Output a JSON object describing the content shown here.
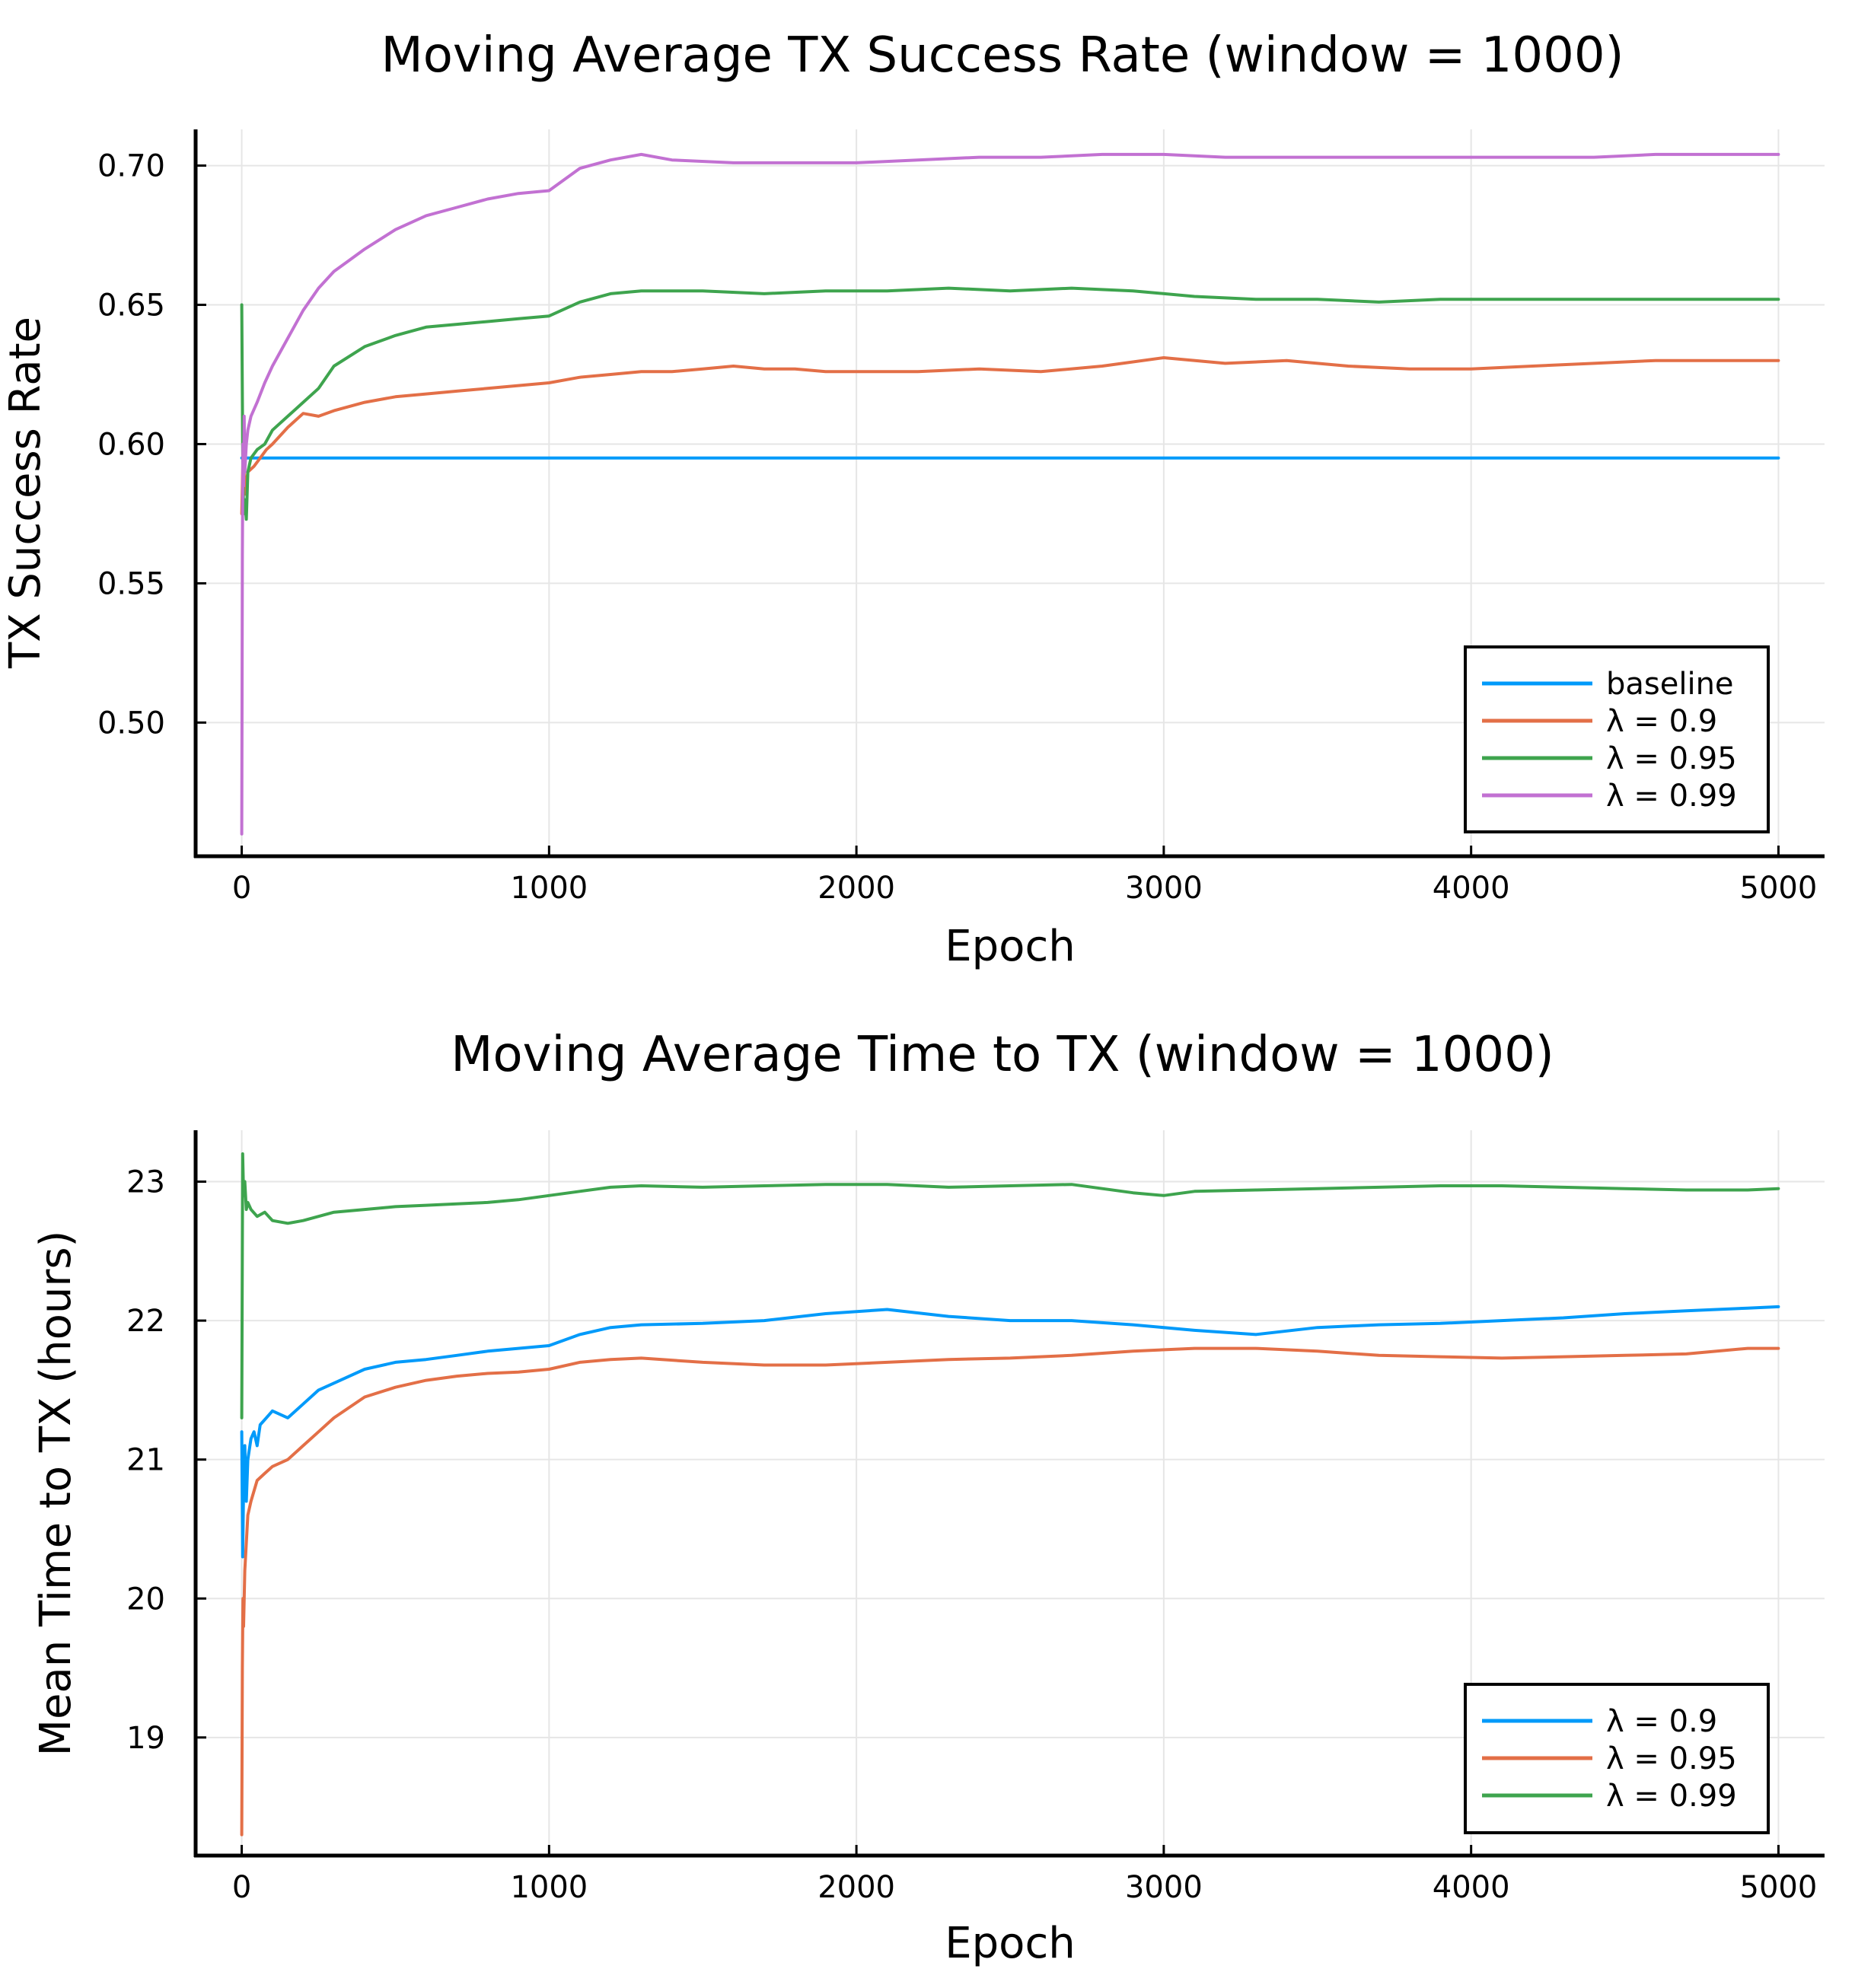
{
  "chart_data": [
    {
      "type": "line",
      "title": "Moving Average TX Success Rate (window = 1000)",
      "xlabel": "Epoch",
      "ylabel": "TX Success Rate",
      "xlim": [
        -150,
        5150
      ],
      "ylim": [
        0.452,
        0.713
      ],
      "xticks": [
        0,
        1000,
        2000,
        3000,
        4000,
        5000
      ],
      "xtick_labels": [
        "0",
        "1000",
        "2000",
        "3000",
        "4000",
        "5000"
      ],
      "yticks": [
        0.5,
        0.55,
        0.6,
        0.65,
        0.7
      ],
      "ytick_labels": [
        "0.50",
        "0.55",
        "0.60",
        "0.65",
        "0.70"
      ],
      "grid": true,
      "legend_position": "bottom-right",
      "series": [
        {
          "name": "baseline",
          "color": "#009AFA",
          "x": [
            0,
            5000
          ],
          "y": [
            0.595,
            0.595
          ]
        },
        {
          "name": "λ = 0.9",
          "color": "#E36F47",
          "x": [
            0,
            5,
            10,
            20,
            40,
            60,
            80,
            100,
            150,
            200,
            250,
            300,
            400,
            500,
            600,
            700,
            800,
            900,
            1000,
            1100,
            1200,
            1300,
            1400,
            1500,
            1600,
            1700,
            1800,
            1900,
            2000,
            2200,
            2400,
            2600,
            2800,
            3000,
            3200,
            3400,
            3600,
            3800,
            4000,
            4200,
            4400,
            4600,
            4800,
            5000
          ],
          "y": [
            0.575,
            0.6,
            0.582,
            0.59,
            0.592,
            0.595,
            0.598,
            0.6,
            0.606,
            0.611,
            0.61,
            0.612,
            0.615,
            0.617,
            0.618,
            0.619,
            0.62,
            0.621,
            0.622,
            0.624,
            0.625,
            0.626,
            0.626,
            0.627,
            0.628,
            0.627,
            0.627,
            0.626,
            0.626,
            0.626,
            0.627,
            0.626,
            0.628,
            0.631,
            0.629,
            0.63,
            0.628,
            0.627,
            0.627,
            0.628,
            0.629,
            0.63,
            0.63,
            0.63
          ]
        },
        {
          "name": "λ = 0.95",
          "color": "#3EA44E",
          "x": [
            0,
            3,
            6,
            10,
            15,
            20,
            30,
            50,
            75,
            100,
            150,
            200,
            250,
            300,
            400,
            500,
            600,
            700,
            800,
            900,
            1000,
            1100,
            1200,
            1300,
            1500,
            1700,
            1900,
            2100,
            2300,
            2500,
            2700,
            2900,
            3100,
            3300,
            3500,
            3700,
            3900,
            4100,
            4300,
            4500,
            4700,
            4900,
            5000
          ],
          "y": [
            0.65,
            0.6,
            0.575,
            0.58,
            0.573,
            0.59,
            0.595,
            0.598,
            0.6,
            0.605,
            0.61,
            0.615,
            0.62,
            0.628,
            0.635,
            0.639,
            0.642,
            0.643,
            0.644,
            0.645,
            0.646,
            0.651,
            0.654,
            0.655,
            0.655,
            0.654,
            0.655,
            0.655,
            0.656,
            0.655,
            0.656,
            0.655,
            0.653,
            0.652,
            0.652,
            0.651,
            0.652,
            0.652,
            0.652,
            0.652,
            0.652,
            0.652,
            0.652
          ]
        },
        {
          "name": "λ = 0.99",
          "color": "#C271D2",
          "x": [
            0,
            2,
            4,
            6,
            8,
            10,
            15,
            20,
            30,
            50,
            75,
            100,
            150,
            200,
            250,
            300,
            350,
            400,
            500,
            600,
            700,
            800,
            900,
            1000,
            1050,
            1100,
            1200,
            1300,
            1400,
            1600,
            1800,
            2000,
            2200,
            2400,
            2600,
            2800,
            3000,
            3200,
            3400,
            3600,
            3800,
            4000,
            4200,
            4400,
            4600,
            4800,
            5000
          ],
          "y": [
            0.46,
            0.56,
            0.6,
            0.585,
            0.61,
            0.59,
            0.6,
            0.605,
            0.61,
            0.615,
            0.622,
            0.628,
            0.638,
            0.648,
            0.656,
            0.662,
            0.666,
            0.67,
            0.677,
            0.682,
            0.685,
            0.688,
            0.69,
            0.691,
            0.695,
            0.699,
            0.702,
            0.704,
            0.702,
            0.701,
            0.701,
            0.701,
            0.702,
            0.703,
            0.703,
            0.704,
            0.704,
            0.703,
            0.703,
            0.703,
            0.703,
            0.703,
            0.703,
            0.703,
            0.704,
            0.704,
            0.704
          ]
        }
      ]
    },
    {
      "type": "line",
      "title": "Moving Average Time to TX (window = 1000)",
      "xlabel": "Epoch",
      "ylabel": "Mean Time to TX (hours)",
      "xlim": [
        -150,
        5150
      ],
      "ylim": [
        18.15,
        23.37
      ],
      "xticks": [
        0,
        1000,
        2000,
        3000,
        4000,
        5000
      ],
      "xtick_labels": [
        "0",
        "1000",
        "2000",
        "3000",
        "4000",
        "5000"
      ],
      "yticks": [
        19,
        20,
        21,
        22,
        23
      ],
      "ytick_labels": [
        "19",
        "20",
        "21",
        "22",
        "23"
      ],
      "grid": true,
      "legend_position": "bottom-right",
      "series": [
        {
          "name": "λ = 0.9",
          "color": "#009AFA",
          "x": [
            0,
            3,
            6,
            10,
            15,
            20,
            30,
            40,
            50,
            60,
            80,
            100,
            150,
            200,
            250,
            300,
            400,
            500,
            600,
            700,
            800,
            900,
            1000,
            1100,
            1200,
            1300,
            1500,
            1700,
            1900,
            2100,
            2300,
            2500,
            2700,
            2900,
            3100,
            3300,
            3500,
            3700,
            3900,
            4100,
            4300,
            4500,
            4700,
            4900,
            5000
          ],
          "y": [
            21.2,
            20.3,
            20.8,
            21.1,
            20.7,
            21.0,
            21.15,
            21.2,
            21.1,
            21.25,
            21.3,
            21.35,
            21.3,
            21.4,
            21.5,
            21.55,
            21.65,
            21.7,
            21.72,
            21.75,
            21.78,
            21.8,
            21.82,
            21.9,
            21.95,
            21.97,
            21.98,
            22.0,
            22.05,
            22.08,
            22.03,
            22.0,
            22.0,
            21.97,
            21.93,
            21.9,
            21.95,
            21.97,
            21.98,
            22.0,
            22.02,
            22.05,
            22.07,
            22.09,
            22.1
          ]
        },
        {
          "name": "λ = 0.95",
          "color": "#E36F47",
          "x": [
            0,
            2,
            4,
            6,
            10,
            15,
            20,
            30,
            50,
            75,
            100,
            150,
            200,
            250,
            300,
            400,
            500,
            600,
            700,
            800,
            900,
            1000,
            1100,
            1200,
            1300,
            1500,
            1700,
            1900,
            2100,
            2300,
            2500,
            2700,
            2900,
            3100,
            3300,
            3500,
            3700,
            3900,
            4100,
            4300,
            4500,
            4700,
            4900,
            5000
          ],
          "y": [
            18.3,
            19.5,
            20.0,
            19.8,
            20.2,
            20.4,
            20.6,
            20.7,
            20.85,
            20.9,
            20.95,
            21.0,
            21.1,
            21.2,
            21.3,
            21.45,
            21.52,
            21.57,
            21.6,
            21.62,
            21.63,
            21.65,
            21.7,
            21.72,
            21.73,
            21.7,
            21.68,
            21.68,
            21.7,
            21.72,
            21.73,
            21.75,
            21.78,
            21.8,
            21.8,
            21.78,
            21.75,
            21.74,
            21.73,
            21.74,
            21.75,
            21.76,
            21.8,
            21.8
          ]
        },
        {
          "name": "λ = 0.99",
          "color": "#3EA44E",
          "x": [
            0,
            3,
            6,
            10,
            15,
            20,
            30,
            50,
            75,
            100,
            150,
            200,
            250,
            300,
            400,
            500,
            600,
            700,
            800,
            900,
            1000,
            1100,
            1200,
            1300,
            1500,
            1700,
            1900,
            2100,
            2300,
            2500,
            2700,
            2900,
            3000,
            3100,
            3300,
            3500,
            3700,
            3900,
            4100,
            4300,
            4500,
            4700,
            4900,
            5000
          ],
          "y": [
            21.3,
            23.2,
            22.9,
            23.0,
            22.8,
            22.85,
            22.8,
            22.75,
            22.78,
            22.72,
            22.7,
            22.72,
            22.75,
            22.78,
            22.8,
            22.82,
            22.83,
            22.84,
            22.85,
            22.87,
            22.9,
            22.93,
            22.96,
            22.97,
            22.96,
            22.97,
            22.98,
            22.98,
            22.96,
            22.97,
            22.98,
            22.92,
            22.9,
            22.93,
            22.94,
            22.95,
            22.96,
            22.97,
            22.97,
            22.96,
            22.95,
            22.94,
            22.94,
            22.95
          ]
        }
      ]
    }
  ]
}
